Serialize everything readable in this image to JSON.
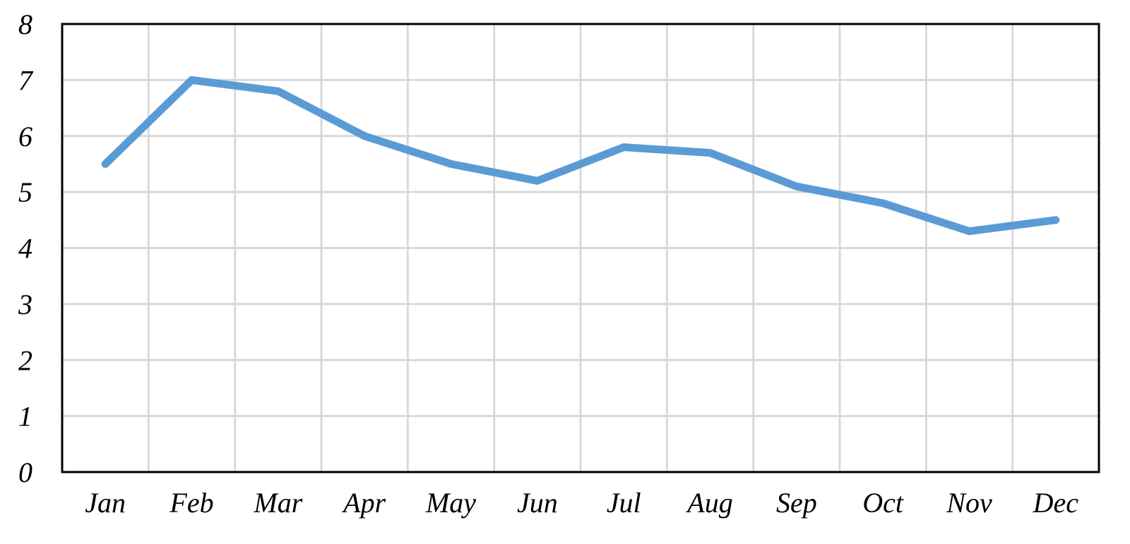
{
  "chart_data": {
    "type": "line",
    "categories": [
      "Jan",
      "Feb",
      "Mar",
      "Apr",
      "May",
      "Jun",
      "Jul",
      "Aug",
      "Sep",
      "Oct",
      "Nov",
      "Dec"
    ],
    "series": [
      {
        "values": [
          5.5,
          7.0,
          6.8,
          6.0,
          5.5,
          5.2,
          5.8,
          5.7,
          5.1,
          4.8,
          4.3,
          4.5
        ],
        "color": "#5b9bd5"
      }
    ],
    "title": "",
    "xlabel": "",
    "ylabel": "",
    "ylim": [
      0,
      8
    ],
    "yticks": [
      "0",
      "1",
      "2",
      "3",
      "4",
      "5",
      "6",
      "7",
      "8"
    ],
    "grid": true,
    "legend": "none",
    "colors": {
      "grid": "#d9d9d9",
      "frame": "#000000",
      "text": "#000000"
    }
  }
}
